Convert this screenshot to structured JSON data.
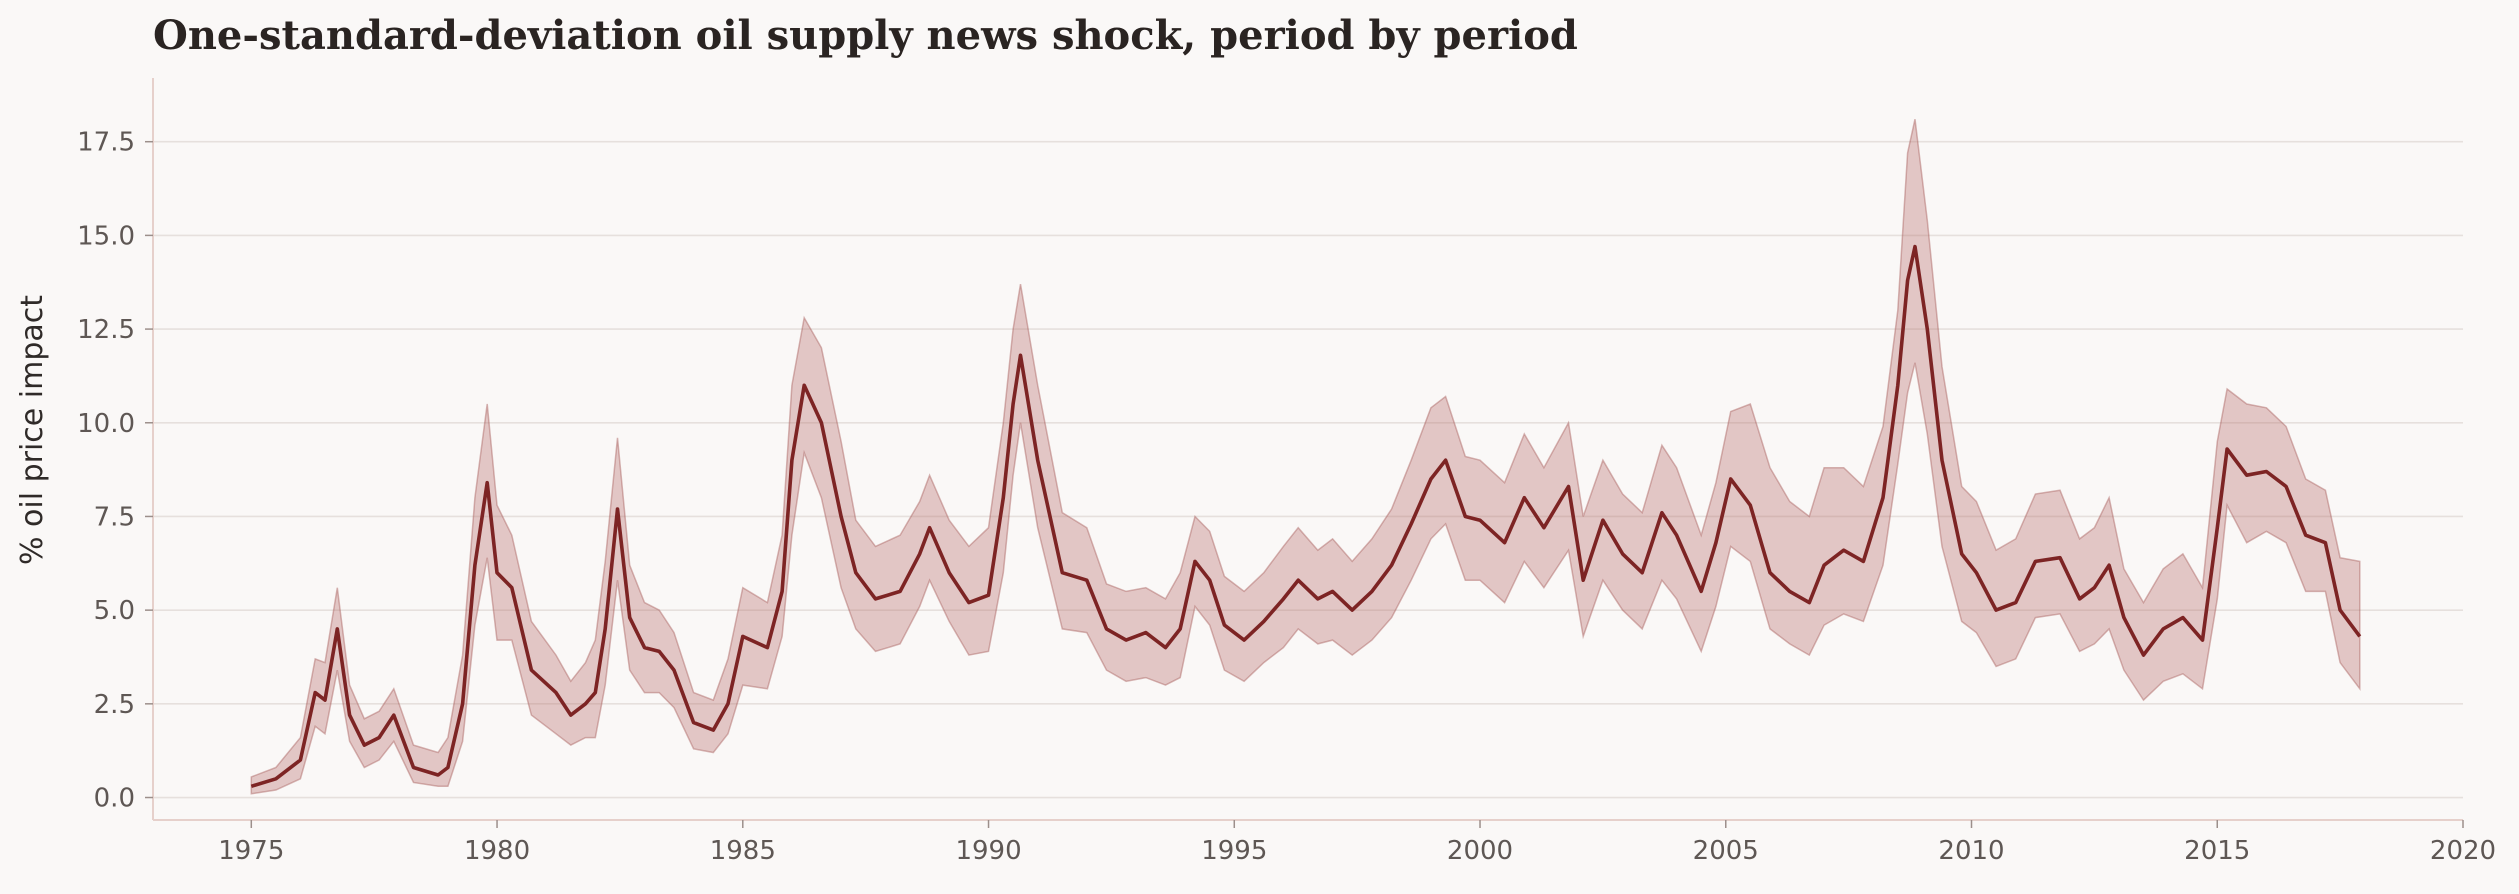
{
  "chart_data": {
    "type": "area",
    "title": "One-standard-deviation oil supply news shock, period by period",
    "xlabel": "",
    "ylabel": "% oil price impact",
    "xlim": [
      1973,
      2020
    ],
    "ylim": [
      -0.6,
      19.2
    ],
    "xticks": [
      1975,
      1980,
      1985,
      1990,
      1995,
      2000,
      2005,
      2010,
      2015,
      2020
    ],
    "yticks": [
      0.0,
      2.5,
      5.0,
      7.5,
      10.0,
      12.5,
      15.0,
      17.5
    ],
    "xtick_labels": [
      "1975",
      "1980",
      "1985",
      "1990",
      "1995",
      "2000",
      "2005",
      "2010",
      "2015",
      "2020"
    ],
    "ytick_labels": [
      "0.0",
      "2.5",
      "5.0",
      "7.5",
      "10.0",
      "12.5",
      "15.0",
      "17.5"
    ],
    "grid": "horizontal",
    "colors": {
      "line": "#7d2424",
      "band": "#b86e6b",
      "background": "#faf8f7"
    },
    "series": [
      {
        "x": [
          1975.0,
          1975.5,
          1976.0,
          1976.3,
          1976.5,
          1976.75,
          1977.0,
          1977.3,
          1977.6,
          1977.9,
          1978.3,
          1978.8,
          1979.0,
          1979.3,
          1979.55,
          1979.8,
          1980.0,
          1980.3,
          1980.7,
          1981.2,
          1981.5,
          1981.8,
          1982.0,
          1982.2,
          1982.45,
          1982.7,
          1983.0,
          1983.3,
          1983.6,
          1984.0,
          1984.4,
          1984.7,
          1985.0,
          1985.5,
          1985.8,
          1986.0,
          1986.25,
          1986.6,
          1987.0,
          1987.3,
          1987.7,
          1988.2,
          1988.6,
          1988.8,
          1989.2,
          1989.6,
          1990.0,
          1990.3,
          1990.5,
          1990.65,
          1991.0,
          1991.5,
          1992.0,
          1992.4,
          1992.8,
          1993.2,
          1993.6,
          1993.9,
          1994.2,
          1994.5,
          1994.8,
          1995.2,
          1995.6,
          1996.0,
          1996.3,
          1996.7,
          1997.0,
          1997.4,
          1997.8,
          1998.2,
          1998.6,
          1999.0,
          1999.3,
          1999.7,
          2000.0,
          2000.5,
          2000.9,
          2001.3,
          2001.8,
          2002.1,
          2002.5,
          2002.9,
          2003.3,
          2003.7,
          2004.0,
          2004.5,
          2004.8,
          2005.1,
          2005.5,
          2005.9,
          2006.3,
          2006.7,
          2007.0,
          2007.4,
          2007.8,
          2008.2,
          2008.5,
          2008.7,
          2008.85,
          2009.1,
          2009.4,
          2009.8,
          2010.1,
          2010.5,
          2010.9,
          2011.3,
          2011.8,
          2012.2,
          2012.5,
          2012.8,
          2013.1,
          2013.5,
          2013.9,
          2014.3,
          2014.7,
          2015.0,
          2015.2,
          2015.6,
          2016.0,
          2016.4,
          2016.8,
          2017.2,
          2017.5,
          2017.9
        ],
        "values": [
          0.3,
          0.5,
          1.0,
          2.8,
          2.6,
          4.5,
          2.2,
          1.4,
          1.6,
          2.2,
          0.8,
          0.6,
          0.8,
          2.5,
          6.2,
          8.4,
          6.0,
          5.6,
          3.4,
          2.8,
          2.2,
          2.5,
          2.8,
          4.5,
          7.7,
          4.8,
          4.0,
          3.9,
          3.4,
          2.0,
          1.8,
          2.5,
          4.3,
          4.0,
          5.5,
          9.0,
          11.0,
          10.0,
          7.5,
          6.0,
          5.3,
          5.5,
          6.5,
          7.2,
          6.0,
          5.2,
          5.4,
          8.0,
          10.5,
          11.8,
          9.0,
          6.0,
          5.8,
          4.5,
          4.2,
          4.4,
          4.0,
          4.5,
          6.3,
          5.8,
          4.6,
          4.2,
          4.7,
          5.3,
          5.8,
          5.3,
          5.5,
          5.0,
          5.5,
          6.2,
          7.3,
          8.5,
          9.0,
          7.5,
          7.4,
          6.8,
          8.0,
          7.2,
          8.3,
          5.8,
          7.4,
          6.5,
          6.0,
          7.6,
          7.0,
          5.5,
          6.8,
          8.5,
          7.8,
          6.0,
          5.5,
          5.2,
          6.2,
          6.6,
          6.3,
          8.0,
          11.0,
          13.8,
          14.7,
          12.5,
          9.0,
          6.5,
          6.0,
          5.0,
          5.2,
          6.3,
          6.4,
          5.3,
          5.6,
          6.2,
          4.8,
          3.8,
          4.5,
          4.8,
          4.2,
          7.2,
          9.3,
          8.6,
          8.7,
          8.3,
          7.0,
          6.8,
          5.0,
          4.3
        ],
        "upper": [
          0.55,
          0.8,
          1.6,
          3.7,
          3.6,
          5.6,
          3.0,
          2.1,
          2.3,
          2.9,
          1.4,
          1.2,
          1.6,
          3.8,
          8.0,
          10.5,
          7.8,
          7.0,
          4.7,
          3.8,
          3.1,
          3.6,
          4.2,
          6.3,
          9.6,
          6.2,
          5.2,
          5.0,
          4.4,
          2.8,
          2.6,
          3.7,
          5.6,
          5.2,
          7.0,
          11.0,
          12.8,
          12.0,
          9.5,
          7.4,
          6.7,
          7.0,
          7.9,
          8.6,
          7.4,
          6.7,
          7.2,
          10.0,
          12.5,
          13.7,
          11.0,
          7.6,
          7.2,
          5.7,
          5.5,
          5.6,
          5.3,
          6.0,
          7.5,
          7.1,
          5.9,
          5.5,
          6.0,
          6.7,
          7.2,
          6.6,
          6.9,
          6.3,
          6.9,
          7.7,
          9.0,
          10.4,
          10.7,
          9.1,
          9.0,
          8.4,
          9.7,
          8.8,
          10.0,
          7.5,
          9.0,
          8.1,
          7.6,
          9.4,
          8.8,
          7.0,
          8.4,
          10.3,
          10.5,
          8.8,
          7.9,
          7.5,
          8.8,
          8.8,
          8.3,
          9.9,
          13.0,
          17.2,
          18.1,
          15.4,
          11.5,
          8.3,
          7.9,
          6.6,
          6.9,
          8.1,
          8.2,
          6.9,
          7.2,
          8.0,
          6.1,
          5.2,
          6.1,
          6.5,
          5.6,
          9.5,
          10.9,
          10.5,
          10.4,
          9.9,
          8.5,
          8.2,
          6.4,
          6.3
        ],
        "lower": [
          0.1,
          0.2,
          0.5,
          1.9,
          1.7,
          3.4,
          1.5,
          0.8,
          1.0,
          1.5,
          0.4,
          0.3,
          0.3,
          1.5,
          4.6,
          6.4,
          4.2,
          4.2,
          2.2,
          1.7,
          1.4,
          1.6,
          1.6,
          3.0,
          5.8,
          3.4,
          2.8,
          2.8,
          2.4,
          1.3,
          1.2,
          1.7,
          3.0,
          2.9,
          4.3,
          7.0,
          9.2,
          8.0,
          5.6,
          4.5,
          3.9,
          4.1,
          5.1,
          5.8,
          4.7,
          3.8,
          3.9,
          6.0,
          8.6,
          10.0,
          7.2,
          4.5,
          4.4,
          3.4,
          3.1,
          3.2,
          3.0,
          3.2,
          5.1,
          4.6,
          3.4,
          3.1,
          3.6,
          4.0,
          4.5,
          4.1,
          4.2,
          3.8,
          4.2,
          4.8,
          5.8,
          6.9,
          7.3,
          5.8,
          5.8,
          5.2,
          6.3,
          5.6,
          6.6,
          4.3,
          5.8,
          5.0,
          4.5,
          5.8,
          5.3,
          3.9,
          5.1,
          6.7,
          6.3,
          4.5,
          4.1,
          3.8,
          4.6,
          4.9,
          4.7,
          6.2,
          8.9,
          10.8,
          11.6,
          9.7,
          6.7,
          4.7,
          4.4,
          3.5,
          3.7,
          4.8,
          4.9,
          3.9,
          4.1,
          4.5,
          3.4,
          2.6,
          3.1,
          3.3,
          2.9,
          5.3,
          7.8,
          6.8,
          7.1,
          6.8,
          5.5,
          5.5,
          3.6,
          2.9
        ]
      }
    ]
  }
}
